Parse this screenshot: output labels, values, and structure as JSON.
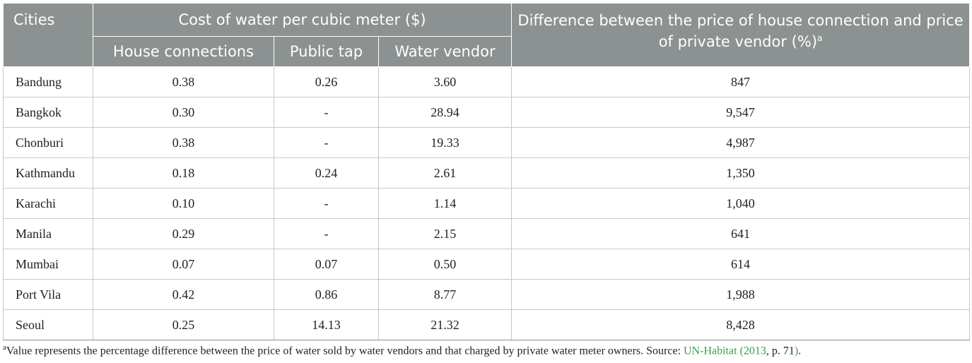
{
  "table": {
    "headers": {
      "cities": "Cities",
      "cost_group": "Cost of water per cubic meter ($)",
      "house_connections": "House connections",
      "public_tap": "Public tap",
      "water_vendor": "Water vendor",
      "difference": "Difference between the price of house connection and price of private vendor (%)",
      "difference_note_mark": "a"
    },
    "rows": [
      {
        "city": "Bandung",
        "house": "0.38",
        "tap": "0.26",
        "vendor": "3.60",
        "diff": "847"
      },
      {
        "city": "Bangkok",
        "house": "0.30",
        "tap": "-",
        "vendor": "28.94",
        "diff": "9,547"
      },
      {
        "city": "Chonburi",
        "house": "0.38",
        "tap": "-",
        "vendor": "19.33",
        "diff": "4,987"
      },
      {
        "city": "Kathmandu",
        "house": "0.18",
        "tap": "0.24",
        "vendor": "2.61",
        "diff": "1,350"
      },
      {
        "city": "Karachi",
        "house": "0.10",
        "tap": "-",
        "vendor": "1.14",
        "diff": "1,040"
      },
      {
        "city": "Manila",
        "house": "0.29",
        "tap": "-",
        "vendor": "2.15",
        "diff": "641"
      },
      {
        "city": "Mumbai",
        "house": "0.07",
        "tap": "0.07",
        "vendor": "0.50",
        "diff": "614"
      },
      {
        "city": "Port Vila",
        "house": "0.42",
        "tap": "0.86",
        "vendor": "8.77",
        "diff": "1,988"
      },
      {
        "city": "Seoul",
        "house": "0.25",
        "tap": "14.13",
        "vendor": "21.32",
        "diff": "8,428"
      }
    ]
  },
  "footnote": {
    "mark": "a",
    "text": "Value represents the percentage difference between the price of water sold by water vendors and that charged by private water meter owners. Source: ",
    "link_text": "UN-Habitat (2013",
    "suffix_text": ", p. 71",
    "link_text_2": ")",
    "end_text": "."
  },
  "colors": {
    "header_background": "#8c9291",
    "header_text": "#ffffff",
    "link": "#3aa04a"
  }
}
